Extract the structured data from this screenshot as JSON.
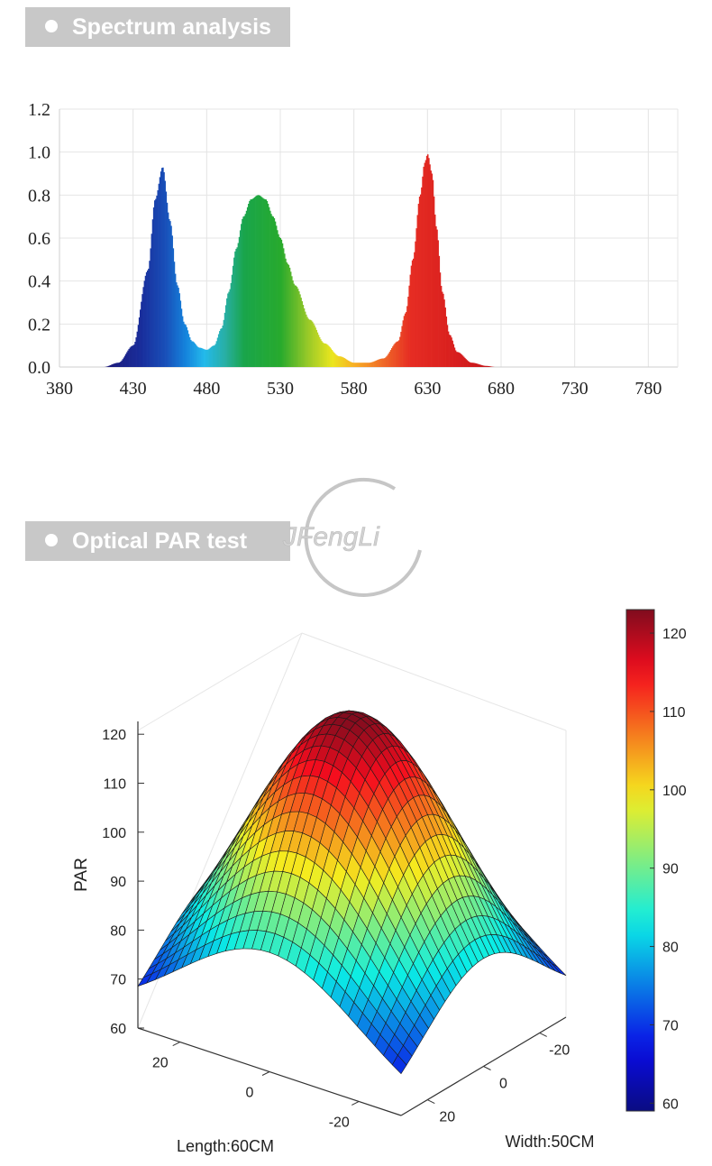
{
  "sections": {
    "spectrum_title": "Spectrum analysis",
    "par_title": "Optical PAR test"
  },
  "watermark": {
    "text": "JFengLi"
  },
  "chart_data": [
    {
      "type": "area",
      "title": "Spectrum analysis",
      "xlabel": "",
      "ylabel": "",
      "xlim": [
        380,
        800
      ],
      "ylim": [
        0,
        1.2
      ],
      "x_ticks": [
        "380",
        "430",
        "480",
        "530",
        "580",
        "630",
        "680",
        "730",
        "780"
      ],
      "y_ticks": [
        "0.0",
        "0.2",
        "0.4",
        "0.6",
        "0.8",
        "1.0",
        "1.2"
      ],
      "grid": true,
      "fill": "wavelength color gradient",
      "x": [
        410,
        420,
        430,
        440,
        445,
        450,
        455,
        460,
        465,
        470,
        475,
        480,
        485,
        490,
        495,
        500,
        505,
        510,
        515,
        520,
        525,
        530,
        535,
        540,
        550,
        560,
        570,
        580,
        590,
        600,
        610,
        615,
        620,
        625,
        628,
        630,
        633,
        636,
        640,
        645,
        650,
        660,
        670,
        676
      ],
      "values": [
        0.0,
        0.02,
        0.1,
        0.45,
        0.78,
        0.93,
        0.68,
        0.38,
        0.2,
        0.12,
        0.09,
        0.08,
        0.1,
        0.18,
        0.35,
        0.55,
        0.7,
        0.78,
        0.8,
        0.78,
        0.7,
        0.6,
        0.48,
        0.38,
        0.22,
        0.11,
        0.05,
        0.02,
        0.02,
        0.04,
        0.12,
        0.25,
        0.5,
        0.8,
        0.95,
        0.99,
        0.9,
        0.65,
        0.35,
        0.15,
        0.07,
        0.02,
        0.005,
        0.0
      ]
    },
    {
      "type": "heatmap",
      "subtype": "3d-surface",
      "title": "Optical PAR test",
      "zlabel": "PAR",
      "xlabel": "Length:60CM",
      "ylabel": "Width:50CM",
      "zlim": [
        60,
        125
      ],
      "z_ticks": [
        "60",
        "70",
        "80",
        "90",
        "100",
        "110",
        "120"
      ],
      "length_ticks": [
        "20",
        "0",
        "-20"
      ],
      "width_ticks": [
        "-20",
        "0",
        "20"
      ],
      "colorbar_ticks": [
        "60",
        "70",
        "80",
        "90",
        "100",
        "110",
        "120"
      ],
      "colorbar_range": [
        59,
        123
      ],
      "peak": 123,
      "corner_min": 60,
      "colormap": "jet"
    }
  ]
}
